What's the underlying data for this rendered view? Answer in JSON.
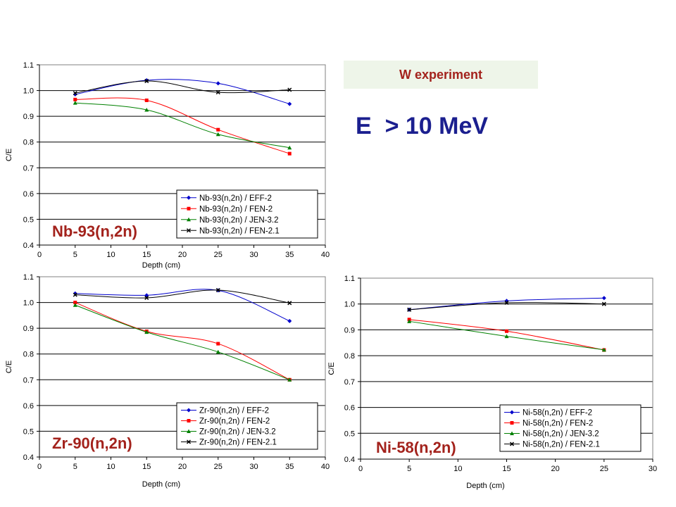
{
  "header": {
    "banner": "W experiment",
    "energy": "E  > 10 MeV"
  },
  "colors": {
    "blue": "#0000cc",
    "red": "#ff0000",
    "green": "#008000",
    "black": "#000000",
    "title": "#a3221c",
    "energy": "#1b1f8f"
  },
  "chart_data": [
    {
      "type": "line",
      "title": "Nb-93(n,2n)",
      "xlabel": "Depth (cm)",
      "ylabel": "C/E",
      "xlim": [
        0,
        40
      ],
      "ylim": [
        0.4,
        1.1
      ],
      "xticks": [
        0,
        5,
        10,
        15,
        20,
        25,
        30,
        35,
        40
      ],
      "yticks": [
        0.4,
        0.5,
        0.6,
        0.7,
        0.8,
        0.9,
        1.0,
        1.1
      ],
      "ytick_labels": [
        "0.4",
        "0.5",
        "0.6",
        "0.7",
        "0.8",
        "0.9",
        "1.0",
        "1.1"
      ],
      "grid": "horizontal",
      "legend": "bottom-right",
      "x": [
        5,
        15,
        25,
        35
      ],
      "series": [
        {
          "name": "Nb-93(n,2n) / EFF-2",
          "color": "#0000cc",
          "marker": "diamond",
          "values": [
            0.985,
            1.04,
            1.028,
            0.948
          ]
        },
        {
          "name": "Nb-93(n,2n) / FEN-2",
          "color": "#ff0000",
          "marker": "square",
          "values": [
            0.965,
            0.962,
            0.848,
            0.755
          ]
        },
        {
          "name": "Nb-93(n,2n) / JEN-3.2",
          "color": "#008000",
          "marker": "triangle",
          "values": [
            0.952,
            0.925,
            0.83,
            0.778
          ]
        },
        {
          "name": "Nb-93(n,2n) / FEN-2.1",
          "color": "#000000",
          "marker": "x",
          "values": [
            0.99,
            1.037,
            0.993,
            1.003
          ]
        }
      ]
    },
    {
      "type": "line",
      "title": "Zr-90(n,2n)",
      "xlabel": "Depth (cm)",
      "ylabel": "C/E",
      "xlim": [
        0,
        40
      ],
      "ylim": [
        0.4,
        1.1
      ],
      "xticks": [
        0,
        5,
        10,
        15,
        20,
        25,
        30,
        35,
        40
      ],
      "yticks": [
        0.4,
        0.5,
        0.6,
        0.7,
        0.8,
        0.9,
        1.0,
        1.1
      ],
      "ytick_labels": [
        "0.4",
        "0.5",
        "0.6",
        "0.7",
        "0.8",
        "0.9",
        "1.0",
        "1.1"
      ],
      "grid": "horizontal",
      "legend": "bottom-right",
      "x": [
        5,
        15,
        25,
        35
      ],
      "series": [
        {
          "name": "Zr-90(n,2n) / EFF-2",
          "color": "#0000cc",
          "marker": "diamond",
          "values": [
            1.035,
            1.028,
            1.047,
            0.928
          ]
        },
        {
          "name": "Zr-90(n,2n) / FEN-2",
          "color": "#ff0000",
          "marker": "square",
          "values": [
            1.0,
            0.888,
            0.84,
            0.7
          ]
        },
        {
          "name": "Zr-90(n,2n) / JEN-3.2",
          "color": "#008000",
          "marker": "triangle",
          "values": [
            0.99,
            0.885,
            0.808,
            0.7
          ]
        },
        {
          "name": "Zr-90(n,2n) / FEN-2.1",
          "color": "#000000",
          "marker": "x",
          "values": [
            1.03,
            1.018,
            1.048,
            0.998
          ]
        }
      ]
    },
    {
      "type": "line",
      "title": "Ni-58(n,2n)",
      "xlabel": "Depth (cm)",
      "ylabel": "C/E",
      "xlim": [
        0,
        30
      ],
      "ylim": [
        0.4,
        1.1
      ],
      "xticks": [
        0,
        5,
        10,
        15,
        20,
        25,
        30
      ],
      "yticks": [
        0.4,
        0.5,
        0.6,
        0.7,
        0.8,
        0.9,
        1.0,
        1.1
      ],
      "ytick_labels": [
        "0.4",
        "0.5",
        "0.6",
        "0.7",
        "0.8",
        "0.9",
        "1.0",
        "1.1"
      ],
      "grid": "horizontal",
      "legend": "bottom-right",
      "x": [
        5,
        15,
        25
      ],
      "series": [
        {
          "name": "Ni-58(n,2n) / EFF-2",
          "color": "#0000cc",
          "marker": "diamond",
          "values": [
            0.978,
            1.012,
            1.023
          ]
        },
        {
          "name": "Ni-58(n,2n) / FEN-2",
          "color": "#ff0000",
          "marker": "square",
          "values": [
            0.94,
            0.895,
            0.822
          ]
        },
        {
          "name": "Ni-58(n,2n) / JEN-3.2",
          "color": "#008000",
          "marker": "triangle",
          "values": [
            0.933,
            0.875,
            0.823
          ]
        },
        {
          "name": "Ni-58(n,2n) / FEN-2.1",
          "color": "#000000",
          "marker": "x",
          "values": [
            0.978,
            1.005,
            1.0
          ]
        }
      ]
    }
  ]
}
